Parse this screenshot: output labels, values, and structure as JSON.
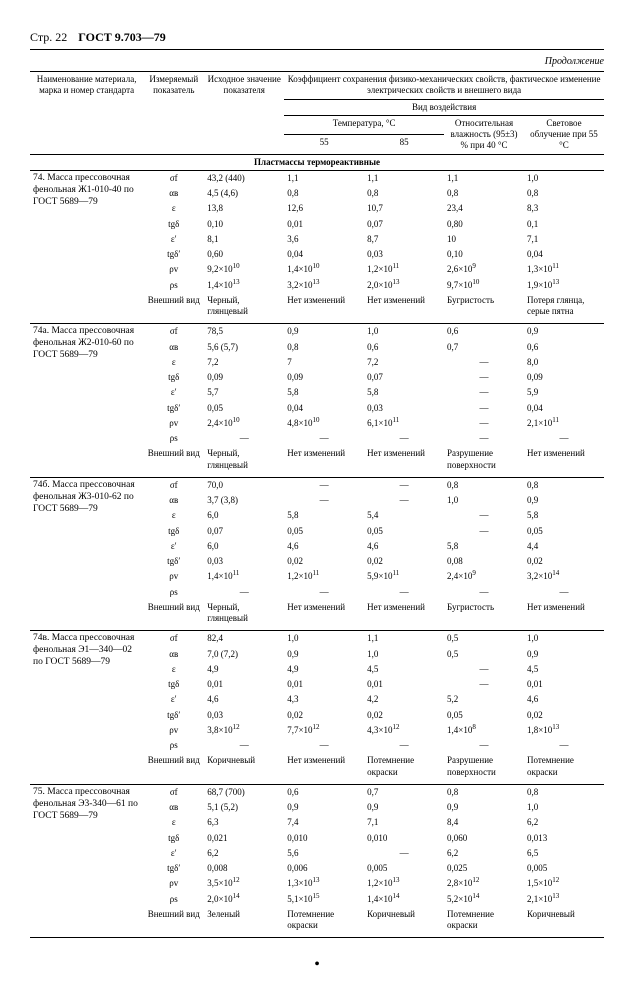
{
  "page_label": "Стр. 22",
  "gost": "ГОСТ 9.703—79",
  "continuation": "Продолжение",
  "header": {
    "name": "Наименование материала, марка и номер стандарта",
    "indicator": "Измеряемый показатель",
    "initial": "Исходное значение показателя",
    "coef_title": "Коэффициент сохранения физико-механических свойств, фактическое изменение электрических свойств и внешнего вида",
    "exposure": "Вид воздействия",
    "temperature": "Температура, °C",
    "t55": "55",
    "t85": "85",
    "humidity": "Относительная влажность (95±3) % при 40 °C",
    "light": "Световое облучение при 55 °C"
  },
  "section_title": "Пластмассы термореактивные",
  "indicators": [
    "σf",
    "αв",
    "ε",
    "tgδ",
    "ε′",
    "tgδ′",
    "ρv",
    "ρs",
    "Внешний вид"
  ],
  "groups": [
    {
      "name": "74. Масса прессовочная фенольная Ж1-010-40 по ГОСТ 5689—79",
      "init": [
        "43,2 (440)",
        "4,5 (4,6)",
        "13,8",
        "0,10",
        "8,1",
        "0,60",
        "9,2×10¹⁰",
        "1,4×10¹³",
        "Черный, глянцевый"
      ],
      "t55": [
        "1,1",
        "0,8",
        "12,6",
        "0,01",
        "3,6",
        "0,04",
        "1,4×10¹⁰",
        "3,2×10¹³",
        "Нет изменений"
      ],
      "t85": [
        "1,1",
        "0,8",
        "10,7",
        "0,07",
        "8,7",
        "0,03",
        "1,2×10¹¹",
        "2,0×10¹³",
        "Нет изменений"
      ],
      "hum": [
        "1,1",
        "0,8",
        "23,4",
        "0,80",
        "10",
        "0,10",
        "2,6×10⁹",
        "9,7×10¹⁰",
        "Бугристость"
      ],
      "light": [
        "1,0",
        "0,8",
        "8,3",
        "0,1",
        "7,1",
        "0,04",
        "1,3×10¹¹",
        "1,9×10¹³",
        "Потеря глянца, серые пятна"
      ]
    },
    {
      "name": "74а. Масса прессовочная фенольная Ж2-010-60 по ГОСТ 5689—79",
      "init": [
        "78,5",
        "5,6 (5,7)",
        "7,2",
        "0,09",
        "5,7",
        "0,05",
        "2,4×10¹⁰",
        "—",
        "Черный, глянцевый"
      ],
      "t55": [
        "0,9",
        "0,8",
        "7",
        "0,09",
        "5,8",
        "0,04",
        "4,8×10¹⁰",
        "—",
        "Нет изменений"
      ],
      "t85": [
        "1,0",
        "0,6",
        "7,2",
        "0,07",
        "5,8",
        "0,03",
        "6,1×10¹¹",
        "—",
        "Нет изменений"
      ],
      "hum": [
        "0,6",
        "0,7",
        "—",
        "—",
        "—",
        "—",
        "—",
        "—",
        "Разрушение поверхности"
      ],
      "light": [
        "0,9",
        "0,6",
        "8,0",
        "0,09",
        "5,9",
        "0,04",
        "2,1×10¹¹",
        "—",
        "Нет изменений"
      ]
    },
    {
      "name": "74б. Масса прессовочная фенольная Ж3-010-62 по ГОСТ 5689—79",
      "init": [
        "70,0",
        "3,7 (3,8)",
        "6,0",
        "0,07",
        "6,0",
        "0,03",
        "1,4×10¹¹",
        "—",
        "Черный, глянцевый"
      ],
      "t55": [
        "—",
        "—",
        "5,8",
        "0,05",
        "4,6",
        "0,02",
        "1,2×10¹¹",
        "—",
        "Нет изменений"
      ],
      "t85": [
        "—",
        "—",
        "5,4",
        "0,05",
        "4,6",
        "0,02",
        "5,9×10¹¹",
        "—",
        "Нет изменений"
      ],
      "hum": [
        "0,8",
        "1,0",
        "—",
        "—",
        "5,8",
        "0,08",
        "2,4×10⁹",
        "—",
        "Бугристость"
      ],
      "light": [
        "0,8",
        "0,9",
        "5,8",
        "0,05",
        "4,4",
        "0,02",
        "3,2×10¹⁴",
        "—",
        "Нет изменений"
      ]
    },
    {
      "name": "74в. Масса прессовочная фенольная Э1—340—02 по ГОСТ 5689—79",
      "init": [
        "82,4",
        "7,0 (7,2)",
        "4,9",
        "0,01",
        "4,6",
        "0,03",
        "3,8×10¹²",
        "—",
        "Коричневый"
      ],
      "t55": [
        "1,0",
        "0,9",
        "4,9",
        "0,01",
        "4,3",
        "0,02",
        "7,7×10¹²",
        "—",
        "Нет изменений"
      ],
      "t85": [
        "1,1",
        "1,0",
        "4,5",
        "0,01",
        "4,2",
        "0,02",
        "4,3×10¹²",
        "—",
        "Потемнение окраски"
      ],
      "hum": [
        "0,5",
        "0,5",
        "—",
        "—",
        "5,2",
        "0,05",
        "1,4×10⁸",
        "—",
        "Разрушение поверхности"
      ],
      "light": [
        "1,0",
        "0,9",
        "4,5",
        "0,01",
        "4,6",
        "0,02",
        "1,8×10¹³",
        "—",
        "Потемнение окраски"
      ]
    },
    {
      "name": "75. Масса прессовочная фенольная Э3-340—61 по ГОСТ 5689—79",
      "init": [
        "68,7 (700)",
        "5,1 (5,2)",
        "6,3",
        "0,021",
        "6,2",
        "0,008",
        "3,5×10¹²",
        "2,0×10¹⁴",
        "Зеленый"
      ],
      "t55": [
        "0,6",
        "0,9",
        "7,4",
        "0,010",
        "5,6",
        "0,006",
        "1,3×10¹³",
        "5,1×10¹⁵",
        "Потемнение окраски"
      ],
      "t85": [
        "0,7",
        "0,9",
        "7,1",
        "0,010",
        "—",
        "0,005",
        "1,2×10¹³",
        "1,4×10¹⁴",
        "Коричневый"
      ],
      "hum": [
        "0,8",
        "0,9",
        "8,4",
        "0,060",
        "6,2",
        "0,025",
        "2,8×10¹²",
        "5,2×10¹⁴",
        "Потемнение окраски"
      ],
      "light": [
        "0,8",
        "1,0",
        "6,2",
        "0,013",
        "6,5",
        "0,005",
        "1,5×10¹²",
        "2,1×10¹³",
        "Коричневый"
      ]
    }
  ]
}
